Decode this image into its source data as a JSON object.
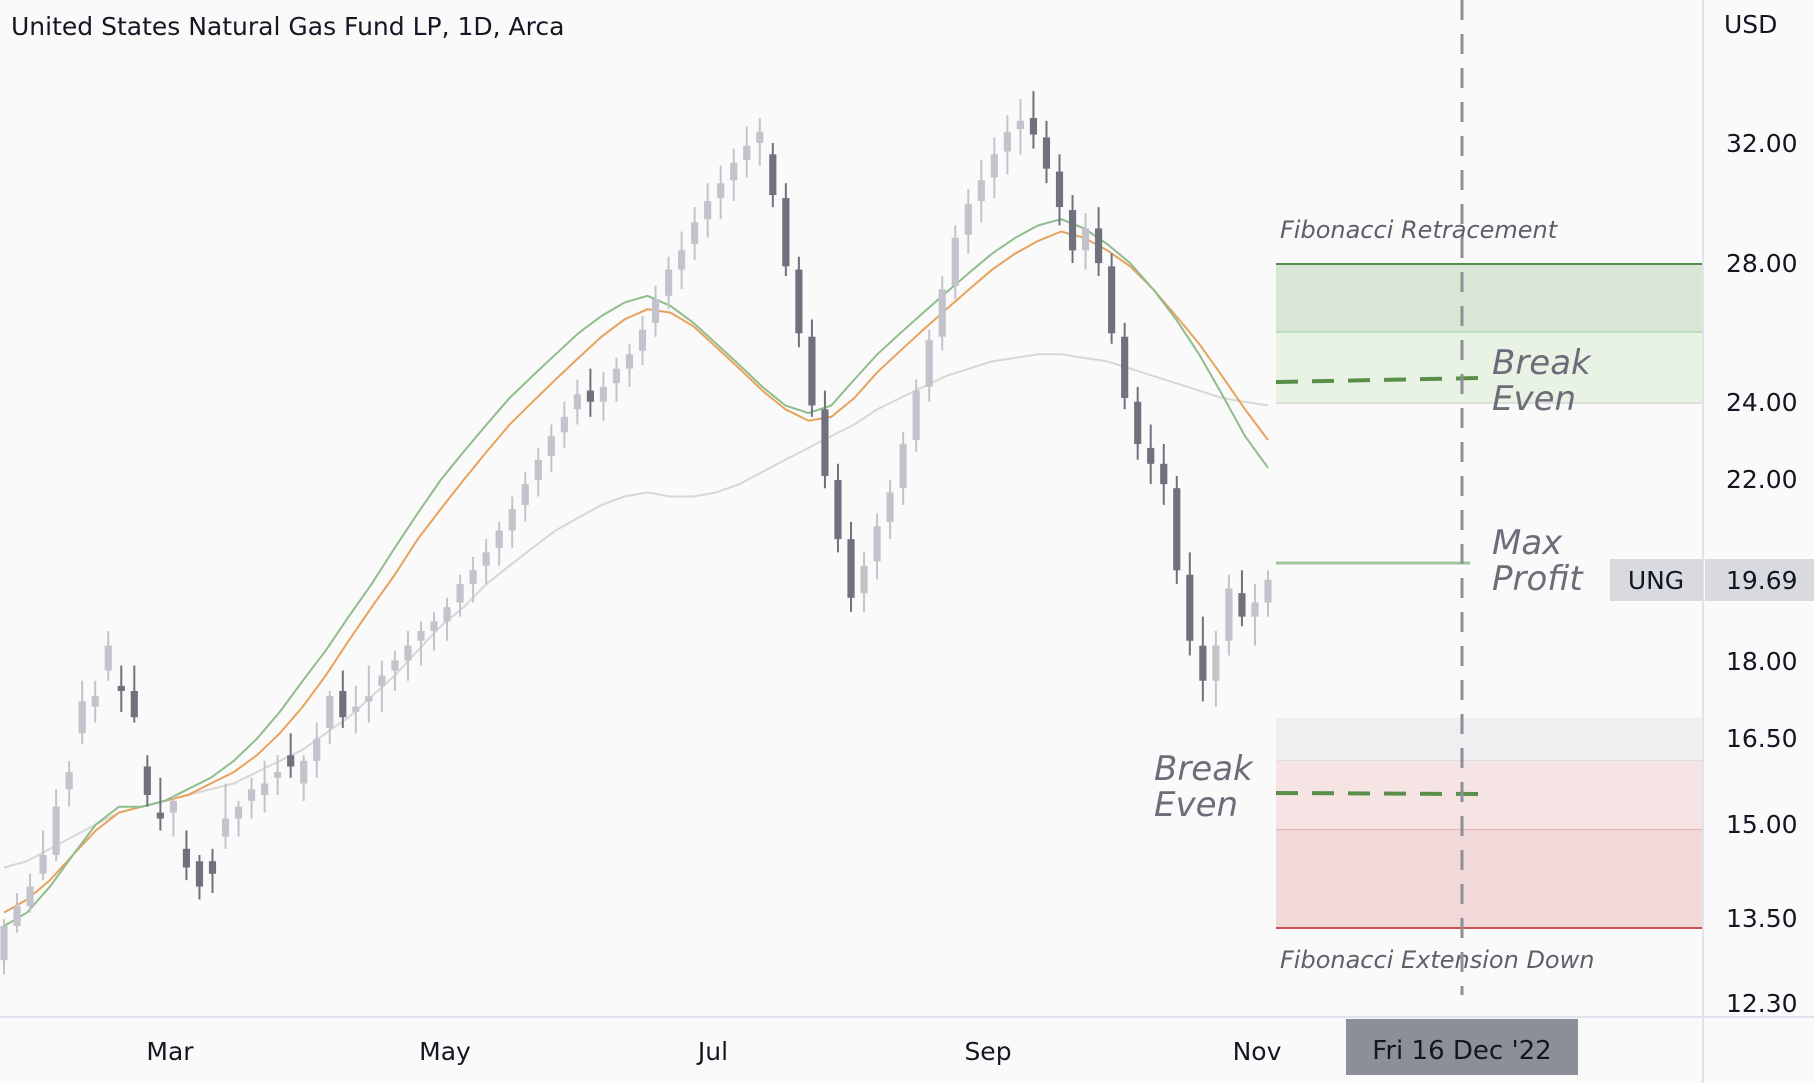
{
  "chart_data": {
    "type": "candlestick",
    "title": "United States Natural Gas Fund LP, 1D, Arca",
    "currency": "USD",
    "ticker": "UNG",
    "last_price": "19.69",
    "scale": "log",
    "y_ticks": [
      "32.00",
      "28.00",
      "24.00",
      "22.00",
      "18.00",
      "16.50",
      "15.00",
      "13.50",
      "12.30"
    ],
    "x_ticks": [
      "Mar",
      "May",
      "Jul",
      "Sep",
      "Nov"
    ],
    "crosshair_date": "Fri 16 Dec '22",
    "colors": {
      "up": "#c2c3cb",
      "down": "#6f717d",
      "ema_green": "#8fbd8b",
      "ema_orange": "#e9a25e",
      "sma_gray": "#d7d7d7",
      "fib_top_line": "#4f8f4a",
      "loss_line": "#d05050"
    },
    "overlays": {
      "retracement_label": "Fibonacci Retracement",
      "extension_label": "Fibonacci Extension Down",
      "upper_break_even_label": [
        "Break",
        "Even"
      ],
      "max_profit_label": [
        "Max",
        "Profit"
      ],
      "lower_break_even_label": [
        "Break",
        "Even"
      ]
    },
    "levels": {
      "fib_top": 28.0,
      "fib_zone_mid": 26.0,
      "fib_zone_bottom": 24.1,
      "upper_break_even": 24.6,
      "max_profit": 19.9,
      "ext_top": 16.9,
      "ext_line": 16.15,
      "lower_break_even": 15.4,
      "ext_mid": 14.95,
      "ext_bottom": 13.45
    },
    "candles": [
      [
        12.9,
        13.5,
        12.7,
        13.4
      ],
      [
        13.4,
        13.9,
        13.3,
        13.7
      ],
      [
        13.7,
        14.2,
        13.6,
        14.0
      ],
      [
        14.2,
        14.9,
        14.1,
        14.5
      ],
      [
        14.5,
        15.6,
        14.4,
        15.3
      ],
      [
        15.6,
        16.1,
        15.3,
        15.9
      ],
      [
        16.6,
        17.6,
        16.4,
        17.2
      ],
      [
        17.1,
        17.6,
        16.8,
        17.3
      ],
      [
        17.8,
        18.6,
        17.6,
        18.3
      ],
      [
        17.5,
        17.9,
        17.0,
        17.4
      ],
      [
        17.4,
        17.9,
        16.8,
        16.9
      ],
      [
        16.0,
        16.2,
        15.3,
        15.5
      ],
      [
        15.2,
        15.8,
        14.9,
        15.1
      ],
      [
        15.2,
        15.5,
        14.8,
        15.4
      ],
      [
        14.6,
        14.9,
        14.1,
        14.3
      ],
      [
        14.4,
        14.5,
        13.8,
        14.0
      ],
      [
        14.4,
        14.6,
        13.9,
        14.2
      ],
      [
        14.8,
        15.7,
        14.6,
        15.1
      ],
      [
        15.1,
        15.4,
        14.8,
        15.3
      ],
      [
        15.4,
        15.8,
        15.1,
        15.6
      ],
      [
        15.5,
        16.1,
        15.2,
        15.7
      ],
      [
        15.8,
        16.2,
        15.5,
        15.9
      ],
      [
        16.2,
        16.6,
        15.8,
        16.0
      ],
      [
        15.7,
        16.2,
        15.4,
        16.1
      ],
      [
        16.1,
        16.8,
        15.8,
        16.5
      ],
      [
        16.7,
        17.4,
        16.4,
        17.3
      ],
      [
        17.4,
        17.8,
        16.7,
        16.9
      ],
      [
        17.0,
        17.5,
        16.6,
        17.1
      ],
      [
        17.2,
        17.9,
        16.8,
        17.3
      ],
      [
        17.5,
        18.0,
        17.0,
        17.7
      ],
      [
        17.8,
        18.2,
        17.4,
        18.0
      ],
      [
        18.0,
        18.6,
        17.6,
        18.3
      ],
      [
        18.4,
        18.8,
        17.9,
        18.6
      ],
      [
        18.6,
        19.0,
        18.2,
        18.8
      ],
      [
        18.8,
        19.3,
        18.4,
        19.1
      ],
      [
        19.2,
        19.8,
        18.9,
        19.6
      ],
      [
        19.6,
        20.2,
        19.2,
        19.9
      ],
      [
        20.0,
        20.6,
        19.6,
        20.3
      ],
      [
        20.4,
        21.0,
        20.0,
        20.8
      ],
      [
        20.8,
        21.6,
        20.4,
        21.3
      ],
      [
        21.4,
        22.2,
        21.0,
        21.9
      ],
      [
        22.0,
        22.8,
        21.6,
        22.5
      ],
      [
        22.6,
        23.4,
        22.2,
        23.1
      ],
      [
        23.2,
        24.0,
        22.8,
        23.6
      ],
      [
        23.8,
        24.6,
        23.4,
        24.2
      ],
      [
        24.3,
        24.9,
        23.6,
        24.0
      ],
      [
        24.0,
        24.8,
        23.5,
        24.4
      ],
      [
        24.5,
        25.2,
        24.0,
        24.9
      ],
      [
        24.9,
        25.6,
        24.4,
        25.3
      ],
      [
        25.4,
        26.4,
        25.0,
        26.0
      ],
      [
        26.2,
        27.3,
        25.8,
        26.9
      ],
      [
        27.0,
        28.2,
        26.6,
        27.8
      ],
      [
        27.8,
        29.0,
        27.2,
        28.4
      ],
      [
        28.6,
        29.8,
        28.1,
        29.3
      ],
      [
        29.4,
        30.6,
        28.8,
        30.0
      ],
      [
        30.1,
        31.2,
        29.4,
        30.6
      ],
      [
        30.7,
        31.8,
        30.0,
        31.3
      ],
      [
        31.4,
        32.6,
        30.8,
        31.9
      ],
      [
        32.0,
        32.9,
        31.2,
        32.4
      ],
      [
        31.6,
        32.0,
        29.8,
        30.2
      ],
      [
        30.1,
        30.6,
        27.6,
        27.9
      ],
      [
        27.8,
        28.2,
        25.5,
        25.9
      ],
      [
        25.8,
        26.3,
        23.6,
        23.9
      ],
      [
        23.8,
        24.3,
        21.8,
        22.1
      ],
      [
        22.0,
        22.4,
        20.3,
        20.6
      ],
      [
        20.6,
        21.0,
        19.0,
        19.3
      ],
      [
        19.4,
        20.3,
        19.0,
        20.0
      ],
      [
        20.1,
        21.2,
        19.7,
        20.9
      ],
      [
        21.0,
        22.0,
        20.6,
        21.7
      ],
      [
        21.8,
        23.2,
        21.4,
        22.9
      ],
      [
        23.0,
        24.6,
        22.7,
        24.3
      ],
      [
        24.4,
        26.0,
        24.0,
        25.7
      ],
      [
        25.8,
        27.6,
        25.4,
        27.2
      ],
      [
        27.3,
        29.2,
        26.9,
        28.8
      ],
      [
        28.9,
        30.4,
        28.3,
        29.9
      ],
      [
        30.0,
        31.4,
        29.3,
        30.7
      ],
      [
        30.8,
        32.2,
        30.1,
        31.6
      ],
      [
        31.7,
        33.0,
        30.9,
        32.4
      ],
      [
        32.5,
        33.6,
        31.6,
        32.8
      ],
      [
        32.9,
        33.9,
        31.8,
        32.3
      ],
      [
        32.2,
        32.8,
        30.6,
        31.1
      ],
      [
        31.0,
        31.6,
        29.2,
        29.8
      ],
      [
        29.7,
        30.2,
        28.0,
        28.4
      ],
      [
        28.4,
        29.6,
        27.8,
        29.1
      ],
      [
        29.1,
        29.8,
        27.6,
        28.0
      ],
      [
        27.9,
        28.3,
        25.6,
        25.9
      ],
      [
        25.8,
        26.2,
        23.8,
        24.1
      ],
      [
        24.0,
        24.4,
        22.5,
        22.9
      ],
      [
        22.8,
        23.4,
        21.9,
        22.4
      ],
      [
        22.4,
        22.9,
        21.4,
        21.9
      ],
      [
        21.8,
        22.1,
        19.6,
        19.9
      ],
      [
        19.8,
        20.3,
        18.1,
        18.4
      ],
      [
        18.3,
        18.9,
        17.2,
        17.6
      ],
      [
        17.6,
        18.6,
        17.1,
        18.3
      ],
      [
        18.4,
        19.8,
        18.1,
        19.5
      ],
      [
        19.4,
        19.9,
        18.7,
        18.9
      ],
      [
        18.9,
        19.6,
        18.3,
        19.2
      ],
      [
        19.2,
        19.9,
        18.9,
        19.69
      ]
    ],
    "ema_green": [
      13.4,
      13.6,
      14.0,
      14.5,
      15.0,
      15.3,
      15.3,
      15.4,
      15.6,
      15.8,
      16.1,
      16.5,
      17.0,
      17.6,
      18.2,
      18.9,
      19.6,
      20.4,
      21.2,
      22.0,
      22.7,
      23.4,
      24.1,
      24.7,
      25.3,
      25.9,
      26.4,
      26.8,
      27.0,
      26.7,
      26.2,
      25.6,
      25.0,
      24.4,
      23.9,
      23.7,
      23.9,
      24.6,
      25.3,
      25.9,
      26.5,
      27.1,
      27.7,
      28.3,
      28.8,
      29.2,
      29.4,
      29.1,
      28.6,
      28.0,
      27.2,
      26.3,
      25.3,
      24.2,
      23.1,
      22.3
    ],
    "ema_orange": [
      13.6,
      13.8,
      14.1,
      14.5,
      14.9,
      15.2,
      15.3,
      15.4,
      15.5,
      15.7,
      15.9,
      16.2,
      16.6,
      17.1,
      17.7,
      18.4,
      19.1,
      19.8,
      20.6,
      21.3,
      22.0,
      22.7,
      23.4,
      24.0,
      24.6,
      25.2,
      25.8,
      26.3,
      26.6,
      26.5,
      26.1,
      25.5,
      24.9,
      24.3,
      23.8,
      23.5,
      23.6,
      24.1,
      24.8,
      25.4,
      26.0,
      26.6,
      27.2,
      27.8,
      28.3,
      28.7,
      29.0,
      28.8,
      28.4,
      27.9,
      27.2,
      26.4,
      25.6,
      24.7,
      23.8,
      23.0
    ],
    "sma_gray": [
      14.3,
      14.4,
      14.6,
      14.8,
      15.0,
      15.2,
      15.3,
      15.4,
      15.5,
      15.6,
      15.7,
      15.9,
      16.1,
      16.3,
      16.6,
      16.9,
      17.3,
      17.7,
      18.2,
      18.7,
      19.1,
      19.6,
      20.0,
      20.4,
      20.8,
      21.1,
      21.4,
      21.6,
      21.7,
      21.6,
      21.6,
      21.7,
      21.9,
      22.2,
      22.5,
      22.8,
      23.1,
      23.4,
      23.8,
      24.1,
      24.4,
      24.7,
      24.9,
      25.1,
      25.2,
      25.3,
      25.3,
      25.2,
      25.1,
      24.9,
      24.7,
      24.5,
      24.3,
      24.1,
      24.0,
      23.9
    ]
  }
}
